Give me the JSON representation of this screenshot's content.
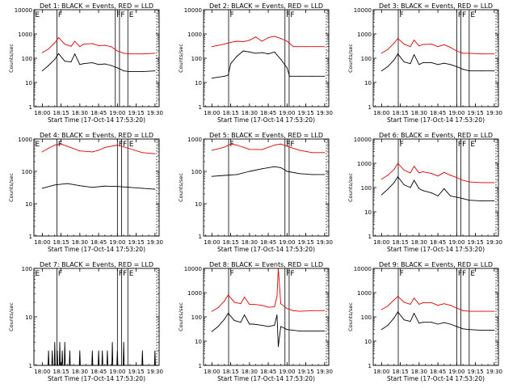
{
  "figure": {
    "xlabel": "Start Time (17-Oct-14 17:53:20)",
    "ylabel": "Counts/sec",
    "x_ticks": [
      "18:00",
      "18:15",
      "18:30",
      "18:45",
      "19:00",
      "19:15",
      "19:30"
    ],
    "y_ticks": [
      "1",
      "10",
      "100",
      "1000",
      "10000"
    ],
    "colors": {
      "events": "#000000",
      "lld": "#e00000",
      "axes": "#000000",
      "background": "#ffffff"
    }
  },
  "chart_data": [
    {
      "type": "line",
      "title": "Det 1: BLACK = Events, RED = LLD",
      "scale": "log",
      "ylim": [
        1,
        10000
      ],
      "xlim": [
        "17:53:20",
        "19:33:20"
      ],
      "flags": [
        {
          "label": "E",
          "x": "17:53:20"
        },
        {
          "label": "F",
          "x": "18:11:40"
        },
        {
          "label": "F",
          "x": "18:58:20"
        },
        {
          "label": "F",
          "x": "19:01:40"
        },
        {
          "label": "E",
          "x": "19:08:20"
        }
      ],
      "series": [
        {
          "role": "lld",
          "x": [
            "18:00",
            "18:05",
            "18:10",
            "18:13",
            "18:18",
            "18:23",
            "18:26",
            "18:30",
            "18:33",
            "18:40",
            "18:45",
            "18:50",
            "18:55",
            "19:00",
            "19:05",
            "19:10",
            "19:20",
            "19:30"
          ],
          "values": [
            170,
            240,
            430,
            700,
            380,
            310,
            500,
            300,
            380,
            400,
            330,
            340,
            300,
            200,
            160,
            150,
            150,
            160
          ]
        },
        {
          "role": "events",
          "x": [
            "18:00",
            "18:05",
            "18:10",
            "18:13",
            "18:18",
            "18:23",
            "18:26",
            "18:30",
            "18:33",
            "18:40",
            "18:45",
            "18:50",
            "18:55",
            "19:00",
            "19:05",
            "19:10",
            "19:20",
            "19:30"
          ],
          "values": [
            30,
            50,
            90,
            155,
            75,
            70,
            150,
            55,
            60,
            65,
            55,
            58,
            50,
            40,
            30,
            28,
            28,
            30
          ]
        }
      ]
    },
    {
      "type": "line",
      "title": "Det 2: BLACK = Events, RED = LLD",
      "scale": "log",
      "ylim": [
        1,
        10000
      ],
      "xlim": [
        "17:53:20",
        "19:33:20"
      ],
      "flags": [
        {
          "label": "F",
          "x": "18:13:20"
        },
        {
          "label": "F",
          "x": "18:58:20"
        },
        {
          "label": "F",
          "x": "19:01:40"
        }
      ],
      "series": [
        {
          "role": "lld",
          "x": [
            "18:00",
            "18:10",
            "18:15",
            "18:20",
            "18:25",
            "18:30",
            "18:35",
            "18:40",
            "18:45",
            "18:50",
            "18:55",
            "19:00",
            "19:05",
            "19:15",
            "19:30"
          ],
          "values": [
            300,
            380,
            450,
            500,
            480,
            550,
            750,
            500,
            700,
            800,
            650,
            500,
            300,
            300,
            300
          ]
        },
        {
          "role": "events",
          "x": [
            "18:00",
            "18:10",
            "18:13",
            "18:15",
            "18:20",
            "18:25",
            "18:30",
            "18:35",
            "18:40",
            "18:45",
            "18:50",
            "18:55",
            "19:00",
            "19:02",
            "19:10",
            "19:20",
            "19:30"
          ],
          "values": [
            15,
            18,
            20,
            60,
            120,
            200,
            180,
            160,
            170,
            150,
            180,
            90,
            40,
            18,
            18,
            18,
            18
          ]
        }
      ]
    },
    {
      "type": "line",
      "title": "Det 3: BLACK = Events, RED = LLD",
      "scale": "log",
      "ylim": [
        1,
        10000
      ],
      "xlim": [
        "17:53:20",
        "19:33:20"
      ],
      "flags": [
        {
          "label": "F",
          "x": "18:13:20"
        },
        {
          "label": "F",
          "x": "19:00:00"
        },
        {
          "label": "F",
          "x": "19:03:20"
        },
        {
          "label": "E",
          "x": "19:10:00"
        }
      ],
      "series": [
        {
          "role": "lld",
          "x": [
            "18:00",
            "18:05",
            "18:10",
            "18:13",
            "18:18",
            "18:23",
            "18:26",
            "18:30",
            "18:33",
            "18:40",
            "18:45",
            "18:50",
            "18:55",
            "19:00",
            "19:05",
            "19:10",
            "19:20",
            "19:30"
          ],
          "values": [
            160,
            230,
            420,
            650,
            380,
            300,
            560,
            320,
            370,
            380,
            300,
            360,
            280,
            200,
            160,
            160,
            150,
            150
          ]
        },
        {
          "role": "events",
          "x": [
            "18:00",
            "18:05",
            "18:10",
            "18:13",
            "18:18",
            "18:23",
            "18:26",
            "18:30",
            "18:33",
            "18:40",
            "18:45",
            "18:50",
            "18:55",
            "19:00",
            "19:05",
            "19:10",
            "19:20",
            "19:30"
          ],
          "values": [
            30,
            45,
            85,
            150,
            70,
            60,
            140,
            55,
            65,
            65,
            55,
            62,
            55,
            45,
            35,
            30,
            30,
            30
          ]
        }
      ]
    },
    {
      "type": "line",
      "title": "Det 4: BLACK = Events, RED = LLD",
      "scale": "log",
      "ylim": [
        1,
        1000
      ],
      "xlim": [
        "17:53:20",
        "19:33:20"
      ],
      "flags": [
        {
          "label": "E",
          "x": "17:53:20"
        },
        {
          "label": "F",
          "x": "18:11:40"
        },
        {
          "label": "F",
          "x": "19:00:00"
        },
        {
          "label": "F",
          "x": "19:03:20"
        },
        {
          "label": "E",
          "x": "19:08:20"
        }
      ],
      "series": [
        {
          "role": "lld",
          "x": [
            "18:00",
            "18:05",
            "18:10",
            "18:15",
            "18:20",
            "18:30",
            "18:40",
            "18:45",
            "18:50",
            "19:00",
            "19:10",
            "19:20",
            "19:30"
          ],
          "values": [
            400,
            520,
            650,
            700,
            600,
            430,
            400,
            450,
            550,
            650,
            500,
            380,
            350
          ]
        },
        {
          "role": "events",
          "x": [
            "18:00",
            "18:10",
            "18:20",
            "18:30",
            "18:40",
            "18:50",
            "19:00",
            "19:10",
            "19:20",
            "19:30"
          ],
          "values": [
            30,
            38,
            42,
            36,
            32,
            35,
            34,
            32,
            30,
            28
          ]
        }
      ]
    },
    {
      "type": "line",
      "title": "Det 5: BLACK = Events, RED = LLD",
      "scale": "log",
      "ylim": [
        1,
        1000
      ],
      "xlim": [
        "17:53:20",
        "19:33:20"
      ],
      "flags": [
        {
          "label": "F",
          "x": "18:13:20"
        },
        {
          "label": "F",
          "x": "18:58:20"
        },
        {
          "label": "F",
          "x": "19:01:40"
        }
      ],
      "series": [
        {
          "role": "lld",
          "x": [
            "18:00",
            "18:10",
            "18:15",
            "18:20",
            "18:30",
            "18:40",
            "18:50",
            "18:55",
            "19:00",
            "19:10",
            "19:20",
            "19:30"
          ],
          "values": [
            450,
            560,
            700,
            650,
            480,
            470,
            650,
            700,
            600,
            450,
            380,
            380
          ]
        },
        {
          "role": "events",
          "x": [
            "18:00",
            "18:10",
            "18:20",
            "18:30",
            "18:40",
            "18:50",
            "18:55",
            "19:00",
            "19:10",
            "19:20",
            "19:30"
          ],
          "values": [
            70,
            75,
            80,
            100,
            120,
            140,
            130,
            100,
            85,
            80,
            80
          ]
        }
      ]
    },
    {
      "type": "line",
      "title": "Det 6: BLACK = Events, RED = LLD",
      "scale": "log",
      "ylim": [
        1,
        10000
      ],
      "xlim": [
        "17:53:20",
        "19:33:20"
      ],
      "flags": [
        {
          "label": "F",
          "x": "18:13:20"
        },
        {
          "label": "F",
          "x": "19:00:00"
        },
        {
          "label": "F",
          "x": "19:03:20"
        },
        {
          "label": "E",
          "x": "19:10:00"
        }
      ],
      "series": [
        {
          "role": "lld",
          "x": [
            "18:00",
            "18:05",
            "18:10",
            "18:13",
            "18:18",
            "18:23",
            "18:26",
            "18:30",
            "18:33",
            "18:40",
            "18:45",
            "18:50",
            "18:55",
            "19:00",
            "19:05",
            "19:10",
            "19:20",
            "19:30"
          ],
          "values": [
            220,
            320,
            560,
            1000,
            520,
            400,
            750,
            400,
            450,
            380,
            300,
            420,
            320,
            260,
            200,
            170,
            160,
            160
          ]
        },
        {
          "role": "events",
          "x": [
            "18:00",
            "18:05",
            "18:10",
            "18:13",
            "18:18",
            "18:23",
            "18:26",
            "18:30",
            "18:33",
            "18:40",
            "18:45",
            "18:50",
            "18:55",
            "19:00",
            "19:05",
            "19:10",
            "19:20",
            "19:30"
          ],
          "values": [
            50,
            85,
            160,
            280,
            130,
            100,
            200,
            90,
            75,
            60,
            45,
            90,
            45,
            40,
            35,
            30,
            28,
            28
          ]
        }
      ]
    },
    {
      "type": "line",
      "title": "Det 7: BLACK = Events, RED = LLD",
      "scale": "log",
      "ylim": [
        1,
        100
      ],
      "xlim": [
        "17:53:20",
        "19:33:20"
      ],
      "flags": [
        {
          "label": "E",
          "x": "17:53:20"
        },
        {
          "label": "F",
          "x": "18:11:40"
        },
        {
          "label": "F",
          "x": "19:00:00"
        },
        {
          "label": "F",
          "x": "19:03:20"
        },
        {
          "label": "E",
          "x": "19:08:20"
        }
      ],
      "series": [
        {
          "role": "events",
          "style": "sparse-spikes",
          "x": [
            "18:00",
            "18:05",
            "18:08",
            "18:10",
            "18:12",
            "18:14",
            "18:16",
            "18:18",
            "18:22",
            "18:30",
            "18:35",
            "18:40",
            "18:45",
            "18:48",
            "18:52",
            "18:56",
            "19:00",
            "19:05",
            "19:12",
            "19:20",
            "19:30"
          ],
          "values": [
            1,
            2,
            2,
            3,
            2,
            3,
            2,
            3,
            2,
            2,
            1,
            2,
            2,
            2,
            2,
            3,
            2,
            3,
            1,
            2,
            2
          ]
        }
      ]
    },
    {
      "type": "line",
      "title": "Det 8: BLACK = Events, RED = LLD",
      "scale": "log",
      "ylim": [
        1,
        10000
      ],
      "xlim": [
        "17:53:20",
        "19:33:20"
      ],
      "flags": [
        {
          "label": "F",
          "x": "18:13:20"
        },
        {
          "label": "F",
          "x": "18:58:20"
        },
        {
          "label": "F",
          "x": "19:01:40"
        }
      ],
      "series": [
        {
          "role": "lld",
          "x": [
            "18:00",
            "18:05",
            "18:10",
            "18:13",
            "18:18",
            "18:23",
            "18:26",
            "18:30",
            "18:33",
            "18:40",
            "18:45",
            "18:50",
            "18:52",
            "18:53",
            "18:55",
            "19:00",
            "19:05",
            "19:10",
            "19:20",
            "19:30"
          ],
          "values": [
            170,
            240,
            450,
            800,
            400,
            350,
            650,
            330,
            330,
            300,
            250,
            260,
            700,
            10000,
            350,
            220,
            180,
            170,
            180,
            180
          ]
        },
        {
          "role": "events",
          "x": [
            "18:00",
            "18:05",
            "18:10",
            "18:13",
            "18:18",
            "18:23",
            "18:26",
            "18:30",
            "18:33",
            "18:40",
            "18:45",
            "18:50",
            "18:52",
            "18:53",
            "18:55",
            "19:00",
            "19:05",
            "19:10",
            "19:20",
            "19:30"
          ],
          "values": [
            25,
            40,
            80,
            140,
            70,
            60,
            120,
            50,
            50,
            45,
            40,
            45,
            120,
            6,
            40,
            30,
            28,
            26,
            26,
            26
          ]
        }
      ]
    },
    {
      "type": "line",
      "title": "Det 9: BLACK = Events, RED = LLD",
      "scale": "log",
      "ylim": [
        1,
        10000
      ],
      "xlim": [
        "17:53:20",
        "19:33:20"
      ],
      "flags": [
        {
          "label": "F",
          "x": "18:13:20"
        },
        {
          "label": "F",
          "x": "19:00:00"
        },
        {
          "label": "F",
          "x": "19:03:20"
        },
        {
          "label": "E",
          "x": "19:10:00"
        }
      ],
      "series": [
        {
          "role": "lld",
          "x": [
            "18:00",
            "18:05",
            "18:10",
            "18:13",
            "18:18",
            "18:23",
            "18:26",
            "18:30",
            "18:33",
            "18:40",
            "18:45",
            "18:50",
            "18:55",
            "19:00",
            "19:05",
            "19:10",
            "19:20",
            "19:30"
          ],
          "values": [
            200,
            280,
            500,
            700,
            400,
            330,
            600,
            330,
            380,
            380,
            300,
            350,
            300,
            230,
            180,
            170,
            170,
            170
          ]
        },
        {
          "role": "events",
          "x": [
            "18:00",
            "18:05",
            "18:10",
            "18:13",
            "18:18",
            "18:23",
            "18:26",
            "18:30",
            "18:33",
            "18:40",
            "18:45",
            "18:50",
            "18:55",
            "19:00",
            "19:05",
            "19:10",
            "19:20",
            "19:30"
          ],
          "values": [
            30,
            45,
            90,
            160,
            75,
            65,
            140,
            55,
            60,
            60,
            50,
            58,
            50,
            40,
            32,
            30,
            28,
            28
          ]
        }
      ]
    }
  ]
}
